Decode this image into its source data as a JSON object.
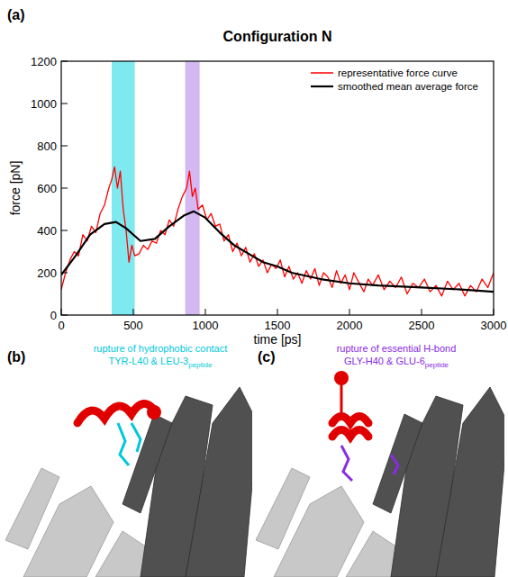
{
  "figure_labels": [
    "(a)",
    "(b)",
    "(c)"
  ],
  "chart_data": {
    "type": "line",
    "title": "Configuration N",
    "x_label": "time [ps]",
    "y_label": "force [pN]",
    "xlim": [
      0,
      3000
    ],
    "ylim": [
      0,
      1200
    ],
    "xticks": [
      0,
      500,
      1000,
      1500,
      2000,
      2500,
      3000
    ],
    "yticks": [
      0,
      200,
      400,
      600,
      800,
      1000,
      1200
    ],
    "legend": "upper right",
    "highlights": [
      {
        "start": 350,
        "end": 510,
        "color": "#7fe9f0"
      },
      {
        "start": 860,
        "end": 960,
        "color": "#d3b8f2"
      }
    ],
    "series": [
      {
        "name": "representative force curve",
        "color": "#ff0000",
        "x": [
          0,
          30,
          60,
          90,
          120,
          150,
          180,
          210,
          240,
          270,
          300,
          330,
          350,
          370,
          390,
          410,
          430,
          450,
          470,
          490,
          510,
          540,
          570,
          600,
          630,
          660,
          690,
          720,
          750,
          780,
          810,
          840,
          870,
          890,
          910,
          930,
          950,
          980,
          1010,
          1040,
          1070,
          1100,
          1130,
          1160,
          1190,
          1220,
          1250,
          1280,
          1310,
          1340,
          1370,
          1400,
          1430,
          1460,
          1490,
          1520,
          1550,
          1580,
          1610,
          1640,
          1670,
          1700,
          1730,
          1760,
          1790,
          1820,
          1850,
          1880,
          1910,
          1940,
          1970,
          2000,
          2030,
          2060,
          2100,
          2130,
          2160,
          2200,
          2240,
          2280,
          2320,
          2360,
          2400,
          2440,
          2480,
          2520,
          2560,
          2600,
          2640,
          2680,
          2720,
          2760,
          2800,
          2840,
          2880,
          2920,
          2960,
          3000
        ],
        "values": [
          120,
          200,
          260,
          300,
          280,
          380,
          350,
          420,
          390,
          480,
          520,
          600,
          640,
          700,
          600,
          680,
          500,
          400,
          250,
          330,
          280,
          290,
          330,
          310,
          350,
          340,
          400,
          380,
          450,
          420,
          500,
          560,
          600,
          680,
          560,
          600,
          500,
          520,
          450,
          480,
          420,
          430,
          350,
          380,
          300,
          340,
          280,
          320,
          250,
          290,
          230,
          260,
          200,
          240,
          220,
          260,
          180,
          230,
          170,
          200,
          150,
          210,
          170,
          220,
          140,
          200,
          180,
          130,
          210,
          150,
          190,
          120,
          200,
          160,
          110,
          170,
          140,
          190,
          120,
          160,
          130,
          180,
          100,
          150,
          130,
          170,
          110,
          140,
          90,
          160,
          120,
          150,
          90,
          140,
          110,
          170,
          130,
          200
        ]
      },
      {
        "name": "smoothed mean average force",
        "color": "#000000",
        "x": [
          0,
          100,
          200,
          300,
          380,
          450,
          550,
          650,
          750,
          850,
          920,
          1000,
          1100,
          1200,
          1300,
          1400,
          1500,
          1600,
          1800,
          2000,
          2200,
          2500,
          2800,
          3000
        ],
        "values": [
          190,
          280,
          380,
          430,
          440,
          410,
          350,
          360,
          420,
          470,
          490,
          460,
          390,
          330,
          290,
          250,
          230,
          200,
          170,
          150,
          140,
          130,
          120,
          110
        ]
      }
    ]
  },
  "snapshots": [
    {
      "label": "(b)",
      "caption": "rupture of hydrophobic contact",
      "residues": "TYR-L40 & LEU-3",
      "subscript": "peptide",
      "color": "#00c8d8"
    },
    {
      "label": "(c)",
      "caption": "rupture of essential H-bond",
      "residues": "GLY-H40 & GLU-6",
      "subscript": "peptide",
      "color": "#8a2be2"
    }
  ]
}
